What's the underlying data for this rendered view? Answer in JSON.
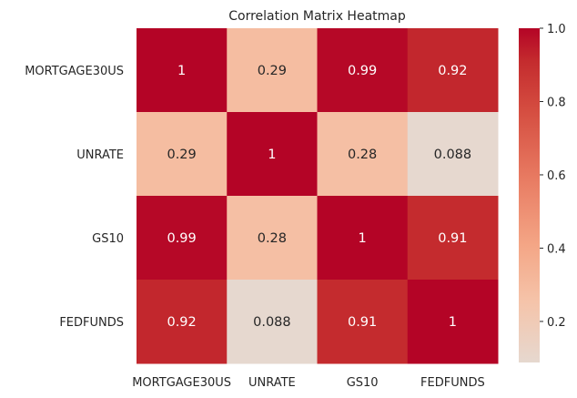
{
  "chart_data": {
    "type": "heatmap",
    "title": "Correlation Matrix Heatmap",
    "x_categories": [
      "MORTGAGE30US",
      "UNRATE",
      "GS10",
      "FEDFUNDS"
    ],
    "y_categories": [
      "MORTGAGE30US",
      "UNRATE",
      "GS10",
      "FEDFUNDS"
    ],
    "values": [
      [
        1,
        0.29,
        0.99,
        0.92
      ],
      [
        0.29,
        1,
        0.28,
        0.088
      ],
      [
        0.99,
        0.28,
        1,
        0.91
      ],
      [
        0.92,
        0.088,
        0.91,
        1
      ]
    ],
    "value_labels": [
      [
        "1",
        "0.29",
        "0.99",
        "0.92"
      ],
      [
        "0.29",
        "1",
        "0.28",
        "0.088"
      ],
      [
        "0.99",
        "0.28",
        "1",
        "0.91"
      ],
      [
        "0.92",
        "0.088",
        "0.91",
        "1"
      ]
    ],
    "colormap": "coolwarm",
    "colorbar": {
      "range": [
        0.088,
        1.0
      ],
      "ticks": [
        0.2,
        0.4,
        0.6,
        0.8,
        1.0
      ],
      "tick_labels": [
        "0.2",
        "0.4",
        "0.6",
        "0.8",
        "1.0"
      ]
    },
    "grid": false
  }
}
